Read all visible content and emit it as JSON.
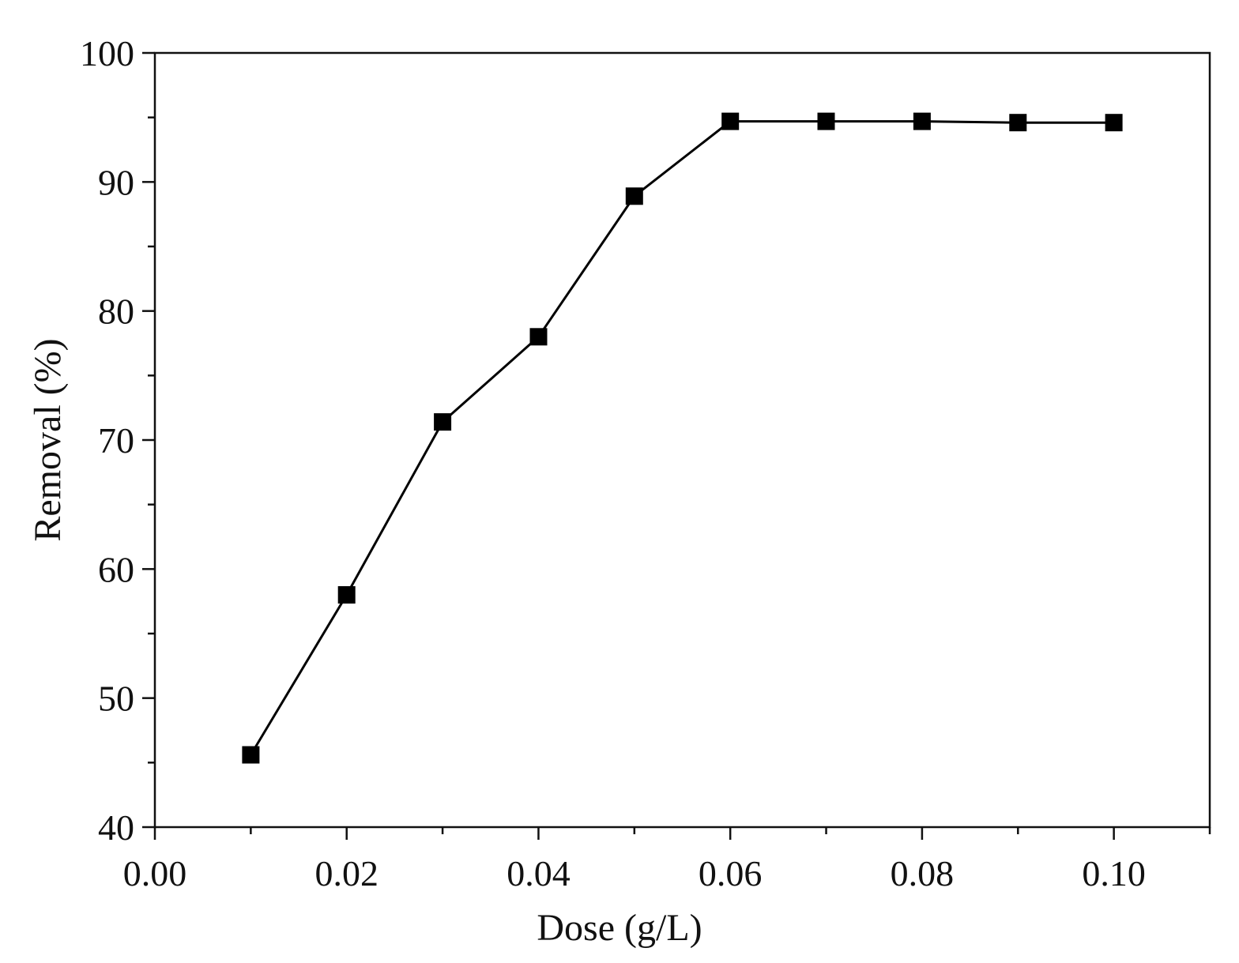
{
  "chart_data": {
    "type": "line",
    "title": "",
    "xlabel": "Dose (g/L)",
    "ylabel": "Removal (%)",
    "xlim": [
      0,
      0.11
    ],
    "ylim": [
      40,
      100
    ],
    "x_ticks": [
      "0.00",
      "0.02",
      "0.04",
      "0.06",
      "0.08",
      "0.10"
    ],
    "x_tick_values": [
      0,
      0.02,
      0.04,
      0.06,
      0.08,
      0.1
    ],
    "x_minor_tick_values": [
      0.01,
      0.03,
      0.05,
      0.07,
      0.09,
      0.11
    ],
    "y_ticks": [
      "40",
      "50",
      "60",
      "70",
      "80",
      "90",
      "100"
    ],
    "y_tick_values": [
      40,
      50,
      60,
      70,
      80,
      90,
      100
    ],
    "y_minor_tick_values": [
      45,
      55,
      65,
      75,
      85,
      95
    ],
    "grid": false,
    "legend": "none",
    "marker": "square",
    "series": [
      {
        "x": [
          0.01,
          0.02,
          0.03,
          0.04,
          0.05,
          0.06,
          0.07,
          0.08,
          0.09,
          0.1
        ],
        "y": [
          45.6,
          58.0,
          71.4,
          78.0,
          88.9,
          94.7,
          94.7,
          94.7,
          94.6,
          94.6
        ],
        "color": "#000000"
      }
    ]
  }
}
